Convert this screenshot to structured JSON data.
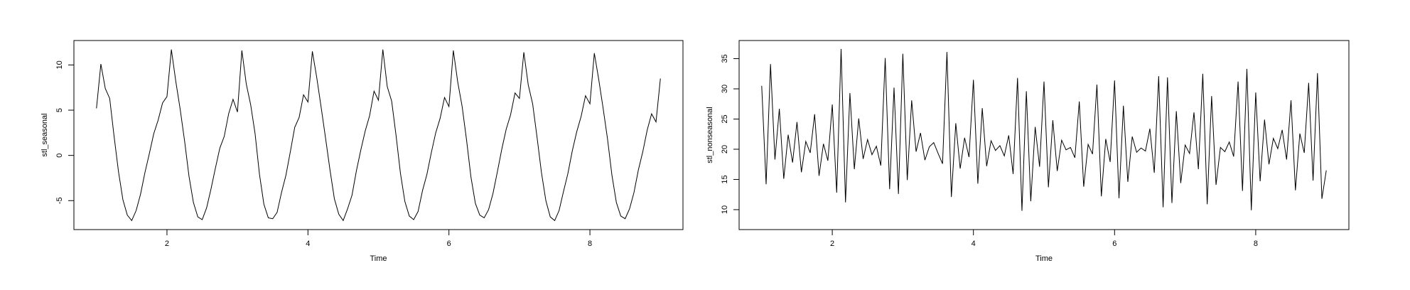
{
  "chart_data": [
    {
      "type": "line",
      "xlabel": "Time",
      "ylabel": "stl_seasonal",
      "color": "#000000",
      "xlim": [
        0.68,
        9.32
      ],
      "xticks": [
        2,
        4,
        6,
        8
      ],
      "ylim": [
        -8.2,
        12.7
      ],
      "yticks": [
        -5,
        0,
        5,
        10
      ],
      "x": [
        1,
        1.0625,
        1.125,
        1.1875,
        1.25,
        1.3125,
        1.375,
        1.4375,
        1.5,
        1.5625,
        1.625,
        1.6875,
        1.75,
        1.8125,
        1.875,
        1.9375,
        2,
        2.0625,
        2.125,
        2.1875,
        2.25,
        2.3125,
        2.375,
        2.4375,
        2.5,
        2.5625,
        2.625,
        2.6875,
        2.75,
        2.8125,
        2.875,
        2.9375,
        3,
        3.0625,
        3.125,
        3.1875,
        3.25,
        3.3125,
        3.375,
        3.4375,
        3.5,
        3.5625,
        3.625,
        3.6875,
        3.75,
        3.8125,
        3.875,
        3.9375,
        4,
        4.0625,
        4.125,
        4.1875,
        4.25,
        4.3125,
        4.375,
        4.4375,
        4.5,
        4.5625,
        4.625,
        4.6875,
        4.75,
        4.8125,
        4.875,
        4.9375,
        5,
        5.0625,
        5.125,
        5.1875,
        5.25,
        5.3125,
        5.375,
        5.4375,
        5.5,
        5.5625,
        5.625,
        5.6875,
        5.75,
        5.8125,
        5.875,
        5.9375,
        6,
        6.0625,
        6.125,
        6.1875,
        6.25,
        6.3125,
        6.375,
        6.4375,
        6.5,
        6.5625,
        6.625,
        6.6875,
        6.75,
        6.8125,
        6.875,
        6.9375,
        7,
        7.0625,
        7.125,
        7.1875,
        7.25,
        7.3125,
        7.375,
        7.4375,
        7.5,
        7.5625,
        7.625,
        7.6875,
        7.75,
        7.8125,
        7.875,
        7.9375,
        8,
        8.0625,
        8.125,
        8.1875,
        8.25,
        8.3125,
        8.375,
        8.4375,
        8.5,
        8.5625,
        8.625,
        8.6875,
        8.75,
        8.8125,
        8.875,
        8.9375,
        9
      ],
      "values": [
        5.2,
        10.1,
        7.4,
        6.3,
        2.1,
        -1.8,
        -4.9,
        -6.6,
        -7.2,
        -6.1,
        -4.3,
        -1.9,
        0.2,
        2.4,
        3.9,
        5.8,
        6.5,
        11.7,
        8.2,
        5.1,
        1.6,
        -2.3,
        -5.2,
        -6.8,
        -7.1,
        -5.8,
        -3.7,
        -1.4,
        0.8,
        2.1,
        4.6,
        6.2,
        4.8,
        11.6,
        7.9,
        5.6,
        2.4,
        -2.1,
        -5.4,
        -6.9,
        -7.0,
        -6.3,
        -4.1,
        -2.2,
        0.4,
        3.1,
        4.2,
        6.7,
        5.9,
        11.5,
        8.6,
        5.3,
        1.9,
        -1.6,
        -4.8,
        -6.5,
        -7.2,
        -5.9,
        -4.4,
        -1.7,
        0.6,
        2.7,
        4.4,
        7.1,
        6.1,
        11.7,
        7.6,
        6.0,
        2.2,
        -2.0,
        -5.1,
        -6.7,
        -7.1,
        -6.2,
        -3.9,
        -2.1,
        0.3,
        2.5,
        4.1,
        6.4,
        5.4,
        11.6,
        8.1,
        5.4,
        1.7,
        -2.4,
        -5.3,
        -6.6,
        -6.9,
        -6.0,
        -4.2,
        -1.8,
        0.7,
        2.9,
        4.5,
        6.9,
        6.3,
        11.4,
        7.8,
        5.7,
        2.0,
        -1.9,
        -5.0,
        -6.8,
        -7.2,
        -6.1,
        -4.0,
        -2.0,
        0.5,
        2.6,
        4.3,
        6.6,
        5.7,
        11.3,
        8.4,
        5.2,
        1.8,
        -2.2,
        -5.2,
        -6.7,
        -7.0,
        -5.9,
        -4.1,
        -1.6,
        0.4,
        2.8,
        4.6,
        3.7,
        8.5
      ]
    },
    {
      "type": "line",
      "xlabel": "Time",
      "ylabel": "stl_nonseasonal",
      "color": "#000000",
      "xlim": [
        0.68,
        9.32
      ],
      "xticks": [
        2,
        4,
        6,
        8
      ],
      "ylim": [
        6.7,
        38
      ],
      "yticks": [
        10,
        15,
        20,
        25,
        30,
        35
      ],
      "x": [
        1,
        1.0625,
        1.125,
        1.1875,
        1.25,
        1.3125,
        1.375,
        1.4375,
        1.5,
        1.5625,
        1.625,
        1.6875,
        1.75,
        1.8125,
        1.875,
        1.9375,
        2,
        2.0625,
        2.125,
        2.1875,
        2.25,
        2.3125,
        2.375,
        2.4375,
        2.5,
        2.5625,
        2.625,
        2.6875,
        2.75,
        2.8125,
        2.875,
        2.9375,
        3,
        3.0625,
        3.125,
        3.1875,
        3.25,
        3.3125,
        3.375,
        3.4375,
        3.5,
        3.5625,
        3.625,
        3.6875,
        3.75,
        3.8125,
        3.875,
        3.9375,
        4,
        4.0625,
        4.125,
        4.1875,
        4.25,
        4.3125,
        4.375,
        4.4375,
        4.5,
        4.5625,
        4.625,
        4.6875,
        4.75,
        4.8125,
        4.875,
        4.9375,
        5,
        5.0625,
        5.125,
        5.1875,
        5.25,
        5.3125,
        5.375,
        5.4375,
        5.5,
        5.5625,
        5.625,
        5.6875,
        5.75,
        5.8125,
        5.875,
        5.9375,
        6,
        6.0625,
        6.125,
        6.1875,
        6.25,
        6.3125,
        6.375,
        6.4375,
        6.5,
        6.5625,
        6.625,
        6.6875,
        6.75,
        6.8125,
        6.875,
        6.9375,
        7,
        7.0625,
        7.125,
        7.1875,
        7.25,
        7.3125,
        7.375,
        7.4375,
        7.5,
        7.5625,
        7.625,
        7.6875,
        7.75,
        7.8125,
        7.875,
        7.9375,
        8,
        8.0625,
        8.125,
        8.1875,
        8.25,
        8.3125,
        8.375,
        8.4375,
        8.5,
        8.5625,
        8.625,
        8.6875,
        8.75,
        8.8125,
        8.875,
        8.9375,
        9
      ],
      "values": [
        30.5,
        14.2,
        34.1,
        18.3,
        26.7,
        15.1,
        22.4,
        17.8,
        24.5,
        16.2,
        21.3,
        19.4,
        25.8,
        15.6,
        20.9,
        18.1,
        27.4,
        12.8,
        36.6,
        11.2,
        29.3,
        16.7,
        25.1,
        18.4,
        21.6,
        19.1,
        20.5,
        17.3,
        35.1,
        13.4,
        30.2,
        12.6,
        35.8,
        14.9,
        28.1,
        19.6,
        22.7,
        18.2,
        20.4,
        21.1,
        19.3,
        17.6,
        36.1,
        12.1,
        24.3,
        16.8,
        21.9,
        18.7,
        31.5,
        14.3,
        26.8,
        17.2,
        21.4,
        19.8,
        20.6,
        18.9,
        22.3,
        15.9,
        31.8,
        9.8,
        29.6,
        11.4,
        23.7,
        17.1,
        31.2,
        13.7,
        24.8,
        16.4,
        21.5,
        19.9,
        20.3,
        18.6,
        27.9,
        13.8,
        20.8,
        19.2,
        30.7,
        12.2,
        21.7,
        17.9,
        31.4,
        11.9,
        27.2,
        14.6,
        22.1,
        19.5,
        20.2,
        19.7,
        23.4,
        16.1,
        32.1,
        10.4,
        31.9,
        11.1,
        26.3,
        14.4,
        20.7,
        19.3,
        26.1,
        16.7,
        32.5,
        10.9,
        28.8,
        14.1,
        20.3,
        19.6,
        21.2,
        18.8,
        31.2,
        13.1,
        33.3,
        9.9,
        29.4,
        14.7,
        24.9,
        17.5,
        21.8,
        20.1,
        23.2,
        18.3,
        28.1,
        13.2,
        22.6,
        19.4,
        31.0,
        14.8,
        32.6,
        11.8,
        16.5
      ]
    }
  ]
}
